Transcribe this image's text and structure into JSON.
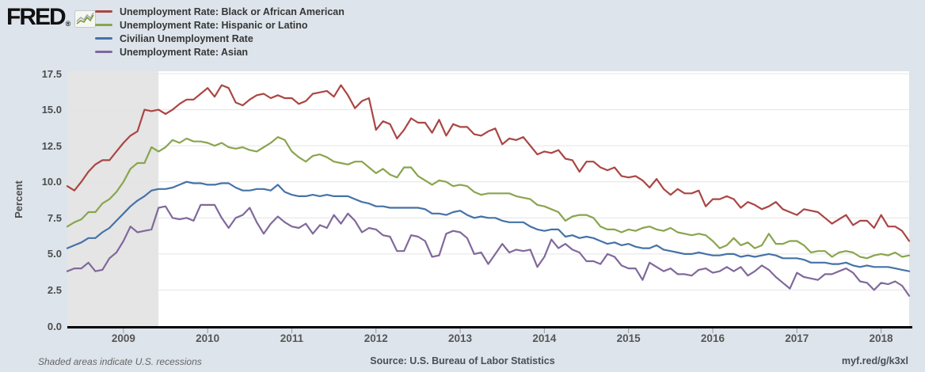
{
  "brand": {
    "logo_text": "FRED",
    "registered_mark": "®",
    "logo_icon": "line-chart-icon"
  },
  "footer": {
    "recession_note": "Shaded areas indicate U.S. recessions",
    "source": "Source: U.S. Bureau of Labor Statistics",
    "link": "myf.red/g/k3xl"
  },
  "colors": {
    "background": "#dde4eb",
    "plot_background": "#ffffff",
    "recession_band": "#e5e5e5",
    "gridline": "#e4e4e4",
    "axis": "#000000",
    "tick": "#999999"
  },
  "chart_data": {
    "type": "line",
    "ylabel": "Percent",
    "ylim": [
      0,
      17.5
    ],
    "yticks": [
      0.0,
      2.5,
      5.0,
      7.5,
      10.0,
      12.5,
      15.0,
      17.5
    ],
    "xtick_years": [
      2009,
      2010,
      2011,
      2012,
      2013,
      2014,
      2015,
      2016,
      2017,
      2018
    ],
    "x_start": "2008-05",
    "x_end": "2018-05",
    "frequency": "monthly",
    "grid": "horizontal",
    "legend_position": "top-left",
    "recession_shading": {
      "start": "2008-05",
      "end": "2009-06"
    },
    "series": [
      {
        "id": "black",
        "name": "Unemployment Rate: Black or African American",
        "color": "#aa4643",
        "values": [
          9.7,
          9.4,
          10.0,
          10.7,
          11.2,
          11.5,
          11.5,
          12.1,
          12.7,
          13.2,
          13.5,
          15.0,
          14.9,
          15.0,
          14.7,
          15.0,
          15.4,
          15.7,
          15.7,
          16.1,
          16.5,
          15.9,
          16.7,
          16.5,
          15.5,
          15.3,
          15.7,
          16.0,
          16.1,
          15.8,
          16.0,
          15.8,
          15.8,
          15.4,
          15.6,
          16.1,
          16.2,
          16.3,
          15.9,
          16.7,
          16.0,
          15.1,
          15.6,
          15.8,
          13.6,
          14.2,
          14.0,
          13.0,
          13.6,
          14.4,
          14.1,
          14.1,
          13.4,
          14.3,
          13.2,
          14.0,
          13.8,
          13.8,
          13.3,
          13.2,
          13.5,
          13.7,
          12.6,
          13.0,
          12.9,
          13.1,
          12.5,
          11.9,
          12.1,
          12.0,
          12.2,
          11.6,
          11.5,
          10.7,
          11.4,
          11.4,
          11.0,
          10.8,
          11.0,
          10.4,
          10.3,
          10.4,
          10.1,
          9.6,
          10.2,
          9.5,
          9.1,
          9.5,
          9.2,
          9.2,
          9.4,
          8.3,
          8.8,
          8.8,
          9.0,
          8.8,
          8.2,
          8.6,
          8.4,
          8.1,
          8.3,
          8.6,
          8.1,
          7.9,
          7.7,
          8.1,
          8.0,
          7.9,
          7.5,
          7.1,
          7.4,
          7.7,
          7.0,
          7.3,
          7.3,
          6.8,
          7.7,
          6.9,
          6.9,
          6.6,
          5.9
        ]
      },
      {
        "id": "hispanic",
        "name": "Unemployment Rate: Hispanic or Latino",
        "color": "#89a54e",
        "values": [
          6.9,
          7.2,
          7.4,
          7.9,
          7.9,
          8.5,
          8.8,
          9.3,
          10.0,
          10.9,
          11.3,
          11.3,
          12.4,
          12.1,
          12.4,
          12.9,
          12.7,
          13.0,
          12.8,
          12.8,
          12.7,
          12.5,
          12.7,
          12.4,
          12.3,
          12.4,
          12.2,
          12.1,
          12.4,
          12.7,
          13.1,
          12.9,
          12.1,
          11.7,
          11.4,
          11.8,
          11.9,
          11.7,
          11.4,
          11.3,
          11.2,
          11.4,
          11.4,
          11.0,
          10.6,
          10.9,
          10.5,
          10.3,
          11.0,
          11.0,
          10.4,
          10.1,
          9.8,
          10.1,
          10.0,
          9.7,
          9.8,
          9.7,
          9.3,
          9.1,
          9.2,
          9.2,
          9.2,
          9.2,
          9.0,
          8.9,
          8.8,
          8.4,
          8.3,
          8.1,
          7.9,
          7.3,
          7.6,
          7.7,
          7.7,
          7.5,
          6.9,
          6.7,
          6.7,
          6.5,
          6.7,
          6.6,
          6.8,
          6.9,
          6.7,
          6.6,
          6.8,
          6.5,
          6.4,
          6.3,
          6.4,
          6.3,
          5.9,
          5.4,
          5.6,
          6.1,
          5.6,
          5.8,
          5.4,
          5.6,
          6.4,
          5.7,
          5.7,
          5.9,
          5.9,
          5.6,
          5.1,
          5.2,
          5.2,
          4.8,
          5.1,
          5.2,
          5.1,
          4.8,
          4.7,
          4.9,
          5.0,
          4.9,
          5.1,
          4.8,
          4.9
        ]
      },
      {
        "id": "civilian",
        "name": "Civilian Unemployment Rate",
        "color": "#4572a7",
        "values": [
          5.4,
          5.6,
          5.8,
          6.1,
          6.1,
          6.5,
          6.8,
          7.3,
          7.8,
          8.3,
          8.7,
          9.0,
          9.4,
          9.5,
          9.5,
          9.6,
          9.8,
          10.0,
          9.9,
          9.9,
          9.8,
          9.8,
          9.9,
          9.9,
          9.6,
          9.4,
          9.4,
          9.5,
          9.5,
          9.4,
          9.8,
          9.3,
          9.1,
          9.0,
          9.0,
          9.1,
          9.0,
          9.1,
          9.0,
          9.0,
          9.0,
          8.8,
          8.6,
          8.5,
          8.3,
          8.3,
          8.2,
          8.2,
          8.2,
          8.2,
          8.2,
          8.1,
          7.8,
          7.8,
          7.7,
          7.9,
          8.0,
          7.7,
          7.5,
          7.6,
          7.5,
          7.5,
          7.3,
          7.2,
          7.2,
          7.2,
          6.9,
          6.7,
          6.6,
          6.7,
          6.7,
          6.2,
          6.3,
          6.1,
          6.2,
          6.1,
          5.9,
          5.7,
          5.8,
          5.6,
          5.7,
          5.5,
          5.4,
          5.4,
          5.6,
          5.3,
          5.2,
          5.1,
          5.0,
          5.0,
          5.1,
          5.0,
          4.9,
          4.9,
          5.0,
          5.0,
          4.8,
          4.9,
          4.8,
          4.9,
          5.0,
          4.9,
          4.7,
          4.7,
          4.7,
          4.6,
          4.4,
          4.4,
          4.4,
          4.3,
          4.3,
          4.4,
          4.2,
          4.1,
          4.2,
          4.1,
          4.1,
          4.1,
          4.0,
          3.9,
          3.8
        ]
      },
      {
        "id": "asian",
        "name": "Unemployment Rate: Asian",
        "color": "#80699b",
        "values": [
          3.8,
          4.0,
          4.0,
          4.4,
          3.8,
          3.9,
          4.7,
          5.1,
          5.9,
          6.9,
          6.5,
          6.6,
          6.7,
          8.2,
          8.3,
          7.5,
          7.4,
          7.5,
          7.3,
          8.4,
          8.4,
          8.4,
          7.5,
          6.8,
          7.5,
          7.7,
          8.2,
          7.2,
          6.4,
          7.1,
          7.6,
          7.2,
          6.9,
          6.8,
          7.1,
          6.4,
          7.0,
          6.8,
          7.7,
          7.1,
          7.8,
          7.3,
          6.5,
          6.8,
          6.7,
          6.3,
          6.2,
          5.2,
          5.2,
          6.3,
          6.2,
          5.9,
          4.8,
          4.9,
          6.4,
          6.6,
          6.5,
          6.1,
          5.0,
          5.1,
          4.3,
          5.0,
          5.7,
          5.1,
          5.3,
          5.2,
          5.3,
          4.1,
          4.8,
          6.0,
          5.4,
          5.7,
          5.3,
          5.1,
          4.5,
          4.5,
          4.3,
          5.0,
          4.8,
          4.2,
          4.0,
          4.0,
          3.2,
          4.4,
          4.1,
          3.8,
          4.0,
          3.6,
          3.6,
          3.5,
          3.9,
          4.0,
          3.7,
          3.8,
          4.1,
          3.8,
          4.1,
          3.5,
          3.8,
          4.2,
          3.9,
          3.4,
          3.0,
          2.6,
          3.7,
          3.4,
          3.3,
          3.2,
          3.6,
          3.6,
          3.8,
          4.0,
          3.7,
          3.1,
          3.0,
          2.5,
          3.0,
          2.9,
          3.1,
          2.8,
          2.1
        ]
      }
    ]
  }
}
